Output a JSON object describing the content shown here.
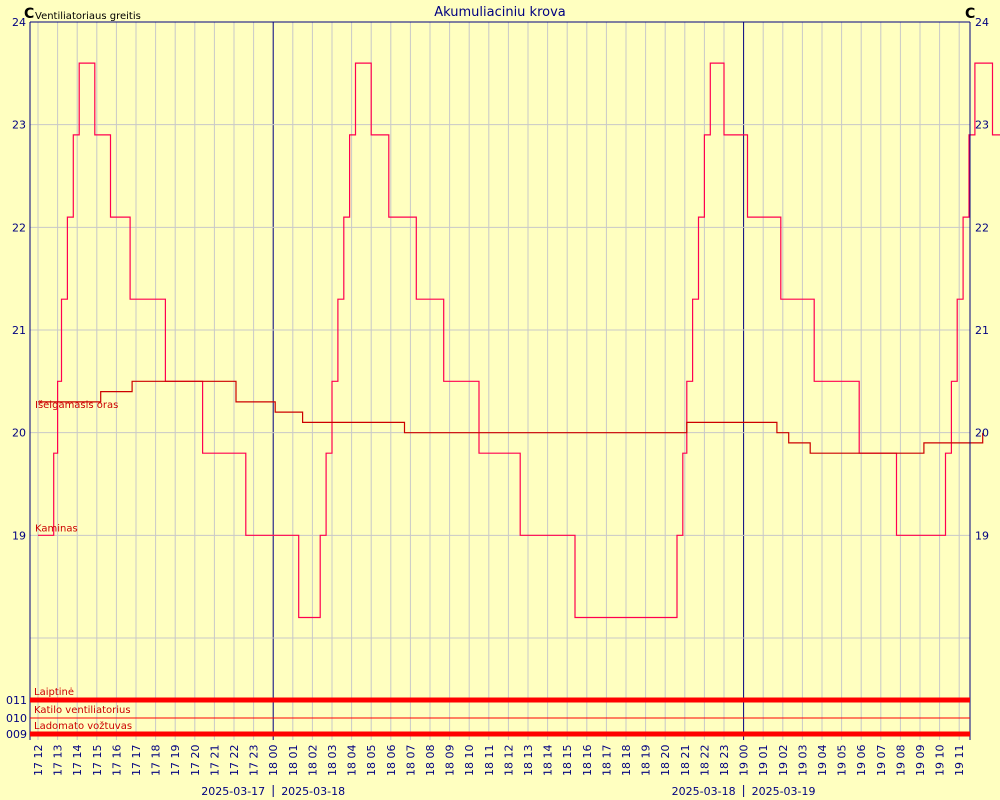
{
  "chart_data": {
    "type": "line",
    "title": "Akumuliaciniu krova",
    "left_unit": "C",
    "right_unit": "C",
    "left_axis_label": "Ventiliatoriaus greitis",
    "ylim": [
      18,
      24
    ],
    "y_ticks": [
      19,
      20,
      21,
      22,
      23,
      24
    ],
    "grid": true,
    "colors": {
      "background": "#ffffc0",
      "grid": "#c8c8c8",
      "axis": "#000080",
      "series": "#ff0050",
      "series2": "#cc0000"
    },
    "x_labels": [
      "17 12",
      "17 13",
      "17 14",
      "17 15",
      "17 16",
      "17 17",
      "17 18",
      "17 19",
      "17 20",
      "17 21",
      "17 22",
      "17 23",
      "18 00",
      "18 01",
      "18 02",
      "18 03",
      "18 04",
      "18 05",
      "18 06",
      "18 07",
      "18 08",
      "18 09",
      "18 10",
      "18 11",
      "18 12",
      "18 13",
      "18 14",
      "18 15",
      "18 16",
      "18 17",
      "18 18",
      "18 19",
      "18 20",
      "18 21",
      "18 22",
      "18 23",
      "19 00",
      "19 01",
      "19 02",
      "19 03",
      "19 04",
      "19 05",
      "19 06",
      "19 07",
      "19 08",
      "19 09",
      "19 10",
      "19 11"
    ],
    "date_labels": [
      {
        "hour_index": 12,
        "left": "2025-03-17",
        "right": "2025-03-18"
      },
      {
        "hour_index": 36,
        "left": "2025-03-18",
        "right": "2025-03-19"
      }
    ],
    "series": [
      {
        "name": "Kaminas",
        "points": [
          [
            0,
            19
          ],
          [
            0.5,
            19
          ],
          [
            0.8,
            19.8
          ],
          [
            1.0,
            20.5
          ],
          [
            1.2,
            21.3
          ],
          [
            1.5,
            22.1
          ],
          [
            1.8,
            22.9
          ],
          [
            2.1,
            23.6
          ],
          [
            2.7,
            23.6
          ],
          [
            2.9,
            22.9
          ],
          [
            3.5,
            22.9
          ],
          [
            3.7,
            22.1
          ],
          [
            4.3,
            22.1
          ],
          [
            4.7,
            21.3
          ],
          [
            6.2,
            21.3
          ],
          [
            6.5,
            20.5
          ],
          [
            8.1,
            20.5
          ],
          [
            8.4,
            19.8
          ],
          [
            10.3,
            19.8
          ],
          [
            10.6,
            19
          ],
          [
            13.1,
            19
          ],
          [
            13.3,
            18.2
          ],
          [
            14.2,
            18.2
          ],
          [
            14.4,
            19
          ],
          [
            14.7,
            19.8
          ],
          [
            15.0,
            20.5
          ],
          [
            15.3,
            21.3
          ],
          [
            15.6,
            22.1
          ],
          [
            15.9,
            22.9
          ],
          [
            16.2,
            23.6
          ],
          [
            16.7,
            23.6
          ],
          [
            17.0,
            22.9
          ],
          [
            17.6,
            22.9
          ],
          [
            17.9,
            22.1
          ],
          [
            19.0,
            22.1
          ],
          [
            19.3,
            21.3
          ],
          [
            20.4,
            21.3
          ],
          [
            20.7,
            20.5
          ],
          [
            22.2,
            20.5
          ],
          [
            22.5,
            19.8
          ],
          [
            24.3,
            19.8
          ],
          [
            24.6,
            19
          ],
          [
            27.0,
            19
          ],
          [
            27.4,
            18.2
          ],
          [
            32.3,
            18.2
          ],
          [
            32.6,
            19
          ],
          [
            32.9,
            19.8
          ],
          [
            33.1,
            20.5
          ],
          [
            33.4,
            21.3
          ],
          [
            33.7,
            22.1
          ],
          [
            34.0,
            22.9
          ],
          [
            34.3,
            23.6
          ],
          [
            34.7,
            23.6
          ],
          [
            35.0,
            22.9
          ],
          [
            35.9,
            22.9
          ],
          [
            36.2,
            22.1
          ],
          [
            37.6,
            22.1
          ],
          [
            37.9,
            21.3
          ],
          [
            39.3,
            21.3
          ],
          [
            39.6,
            20.5
          ],
          [
            41.5,
            20.5
          ],
          [
            41.9,
            19.8
          ],
          [
            43.4,
            19.8
          ],
          [
            43.8,
            19
          ],
          [
            46.0,
            19
          ],
          [
            46.3,
            19.8
          ],
          [
            46.6,
            20.5
          ],
          [
            46.9,
            21.3
          ],
          [
            47.2,
            22.1
          ],
          [
            47.5,
            22.9
          ],
          [
            47.8,
            23.6
          ],
          [
            48.4,
            23.6
          ],
          [
            48.7,
            22.9
          ],
          [
            49.2,
            22.9
          ],
          [
            49.4,
            22.1
          ]
        ]
      },
      {
        "name": "Išeigamasis oras",
        "points": [
          [
            0,
            20.3
          ],
          [
            2.9,
            20.3
          ],
          [
            3.2,
            20.4
          ],
          [
            4.5,
            20.4
          ],
          [
            4.8,
            20.5
          ],
          [
            8.3,
            20.5
          ],
          [
            10.1,
            20.3
          ],
          [
            12.0,
            20.3
          ],
          [
            12.1,
            20.2
          ],
          [
            13.2,
            20.2
          ],
          [
            13.5,
            20.1
          ],
          [
            18.4,
            20.1
          ],
          [
            18.7,
            20.0
          ],
          [
            32.9,
            20.0
          ],
          [
            33.1,
            20.1
          ],
          [
            37.5,
            20.1
          ],
          [
            37.7,
            20.0
          ],
          [
            38.1,
            20.0
          ],
          [
            38.3,
            19.9
          ],
          [
            39.2,
            19.9
          ],
          [
            39.4,
            19.8
          ],
          [
            45.0,
            19.8
          ],
          [
            45.2,
            19.9
          ],
          [
            48.0,
            19.9
          ],
          [
            48.2,
            20.0
          ]
        ]
      }
    ],
    "bottom_rows": [
      {
        "label": "Laiptinė",
        "code": "011",
        "state": "on"
      },
      {
        "label": "Katilo ventiliatorius",
        "code": "010",
        "state": "off"
      },
      {
        "label": "Ladomato vožtuvas",
        "code": "009",
        "state": "on"
      }
    ]
  }
}
